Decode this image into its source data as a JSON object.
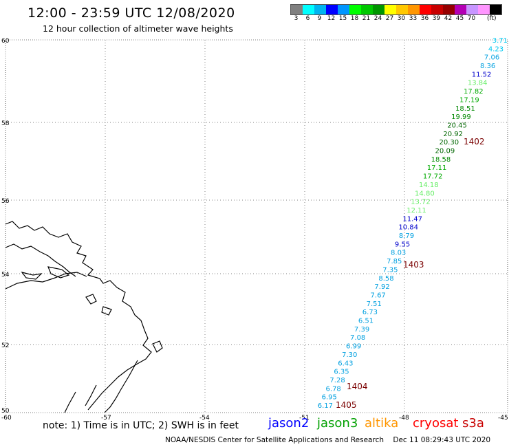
{
  "title": "12:00 - 23:59 UTC 12/08/2020",
  "subtitle": "12 hour collection of altimeter wave heights",
  "legend": {
    "colors": [
      "#808080",
      "#00ffff",
      "#00b4f0",
      "#0000ff",
      "#0096ff",
      "#00ff00",
      "#00c800",
      "#009600",
      "#ffff00",
      "#ffc800",
      "#ff9600",
      "#ff0000",
      "#c80000",
      "#960000",
      "#b400b4",
      "#c896ff",
      "#ff96ff",
      "#000000"
    ],
    "labels": [
      "3",
      "6",
      "9",
      "12",
      "15",
      "18",
      "21",
      "24",
      "27",
      "30",
      "33",
      "36",
      "39",
      "42",
      "45",
      "70"
    ],
    "unit": "(ft)"
  },
  "axes": {
    "lat_labels": [
      "60",
      "58",
      "56",
      "54",
      "52",
      "50"
    ],
    "lon_labels": [
      "-60",
      "-57",
      "-54",
      "-51",
      "-48",
      "-45"
    ]
  },
  "observations": [
    {
      "v": "3.71",
      "c": "#00c8f0"
    },
    {
      "v": "4.23",
      "c": "#00c8f0"
    },
    {
      "v": "7.06",
      "c": "#00a0e0"
    },
    {
      "v": "8.36",
      "c": "#00a0e0"
    },
    {
      "v": "11.52",
      "c": "#0000cc"
    },
    {
      "v": "13.84",
      "c": "#66ee66"
    },
    {
      "v": "17.82",
      "c": "#00aa00"
    },
    {
      "v": "17.19",
      "c": "#00aa00"
    },
    {
      "v": "18.51",
      "c": "#008800"
    },
    {
      "v": "19.99",
      "c": "#008800"
    },
    {
      "v": "20.45",
      "c": "#006600"
    },
    {
      "v": "20.92",
      "c": "#006600"
    },
    {
      "v": "20.30",
      "c": "#006600"
    },
    {
      "v": "20.09",
      "c": "#006600"
    },
    {
      "v": "18.58",
      "c": "#008800"
    },
    {
      "v": "17.11",
      "c": "#00aa00"
    },
    {
      "v": "17.72",
      "c": "#00aa00"
    },
    {
      "v": "14.18",
      "c": "#66ee66"
    },
    {
      "v": "14.80",
      "c": "#66ee66"
    },
    {
      "v": "13.72",
      "c": "#66ee66"
    },
    {
      "v": "12.11",
      "c": "#66ee66"
    },
    {
      "v": "11.47",
      "c": "#0000cc"
    },
    {
      "v": "10.84",
      "c": "#0000cc"
    },
    {
      "v": "8.79",
      "c": "#00a0e0"
    },
    {
      "v": "9.55",
      "c": "#0000cc"
    },
    {
      "v": "8.03",
      "c": "#00a0e0"
    },
    {
      "v": "7.85",
      "c": "#00a0e0"
    },
    {
      "v": "7.35",
      "c": "#00a0e0"
    },
    {
      "v": "8.58",
      "c": "#00a0e0"
    },
    {
      "v": "7.92",
      "c": "#00a0e0"
    },
    {
      "v": "7.67",
      "c": "#00a0e0"
    },
    {
      "v": "7.51",
      "c": "#00a0e0"
    },
    {
      "v": "6.73",
      "c": "#00a0e0"
    },
    {
      "v": "6.51",
      "c": "#00a0e0"
    },
    {
      "v": "7.39",
      "c": "#00a0e0"
    },
    {
      "v": "7.08",
      "c": "#00a0e0"
    },
    {
      "v": "6.99",
      "c": "#00a0e0"
    },
    {
      "v": "7.30",
      "c": "#00a0e0"
    },
    {
      "v": "6.43",
      "c": "#00a0e0"
    },
    {
      "v": "6.35",
      "c": "#00a0e0"
    },
    {
      "v": "7.28",
      "c": "#00a0e0"
    },
    {
      "v": "6.78",
      "c": "#00a0e0"
    },
    {
      "v": "6.95",
      "c": "#00a0e0"
    },
    {
      "v": "6.17",
      "c": "#00a0e0"
    }
  ],
  "pass_labels": [
    "1402",
    "1403",
    "1404",
    "1405"
  ],
  "note": "note: 1) Time is in UTC; 2) SWH is in feet",
  "satellites": [
    {
      "name": "jason2",
      "color": "#0000ff"
    },
    {
      "name": "jason3",
      "color": "#00a000"
    },
    {
      "name": "altika",
      "color": "#ff9600"
    },
    {
      "name": "cryosat",
      "color": "#ff0000"
    },
    {
      "name": "s3a",
      "color": "#c80000"
    }
  ],
  "footer_left": "NOAA/NESDIS Center for Satellite Applications and Research",
  "footer_right": "Dec 11 08:29:43 UTC 2020"
}
